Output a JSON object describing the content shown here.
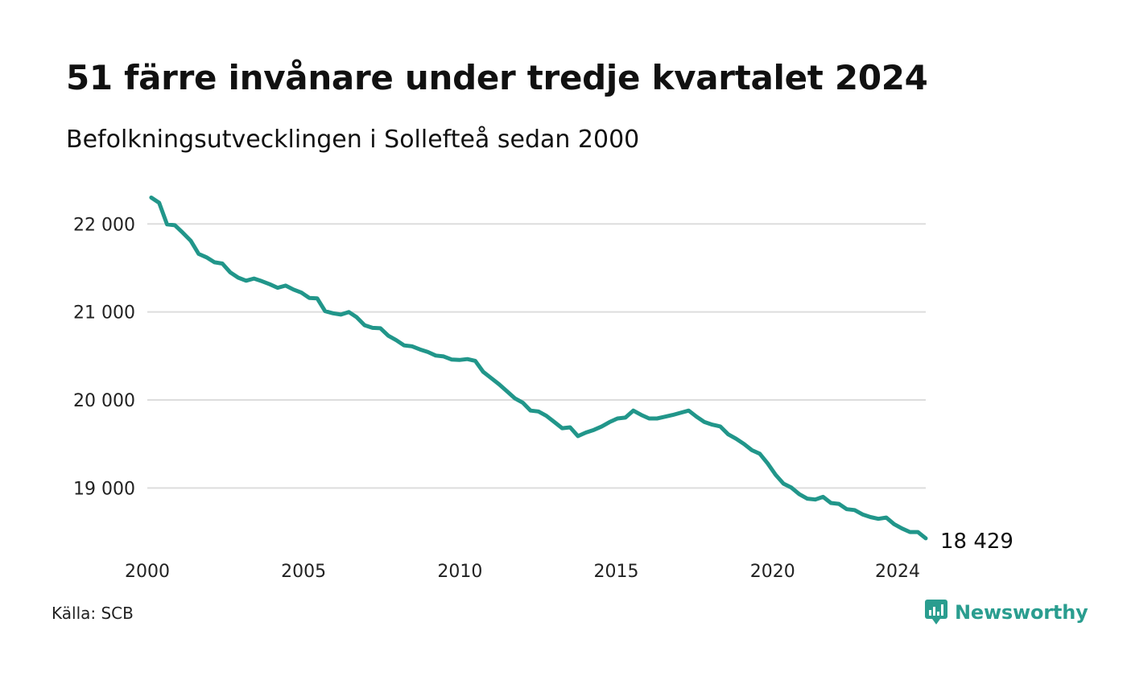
{
  "title": "51 färre invånare under tredje kvartalet 2024",
  "subtitle": "Befolkningsutvecklingen i Sollefteå sedan 2000",
  "source": "Källa: SCB",
  "brand": {
    "name": "Newsworthy",
    "icon": "newsworthy-logo-icon",
    "color": "#2a9d8f"
  },
  "colors": {
    "line": "#21968a",
    "grid": "#dddddd"
  },
  "chart_data": {
    "type": "line",
    "title": "51 färre invånare under tredje kvartalet 2024",
    "subtitle": "Befolkningsutvecklingen i Sollefteå sedan 2000",
    "xlabel": "",
    "ylabel": "",
    "ylim": [
      18300,
      22350
    ],
    "xlim": [
      2000,
      2024.9
    ],
    "grid": true,
    "y_ticks": [
      {
        "value": 19000,
        "label": "19 000"
      },
      {
        "value": 20000,
        "label": "20 000"
      },
      {
        "value": 21000,
        "label": "21 000"
      },
      {
        "value": 22000,
        "label": "22 000"
      }
    ],
    "x_ticks": [
      {
        "value": 2000,
        "label": "2000"
      },
      {
        "value": 2005,
        "label": "2005"
      },
      {
        "value": 2010,
        "label": "2010"
      },
      {
        "value": 2015,
        "label": "2015"
      },
      {
        "value": 2020,
        "label": "2020"
      },
      {
        "value": 2024,
        "label": "2024"
      }
    ],
    "end_label": "18 429",
    "series": [
      {
        "values": [
          22300,
          22240,
          21995,
          21985,
          21900,
          21810,
          21660,
          21620,
          21565,
          21550,
          21450,
          21390,
          21355,
          21380,
          21350,
          21315,
          21275,
          21300,
          21255,
          21220,
          21160,
          21155,
          21010,
          20985,
          20970,
          21000,
          20940,
          20850,
          20820,
          20815,
          20730,
          20680,
          20620,
          20610,
          20575,
          20545,
          20505,
          20495,
          20460,
          20455,
          20465,
          20445,
          20320,
          20250,
          20180,
          20100,
          20020,
          19970,
          19880,
          19870,
          19820,
          19750,
          19680,
          19690,
          19590,
          19630,
          19660,
          19700,
          19750,
          19790,
          19800,
          19880,
          19830,
          19790,
          19790,
          19810,
          19830,
          19855,
          19880,
          19810,
          19750,
          19720,
          19700,
          19610,
          19560,
          19500,
          19430,
          19390,
          19280,
          19150,
          19050,
          19005,
          18930,
          18880,
          18870,
          18900,
          18830,
          18820,
          18760,
          18750,
          18700,
          18670,
          18650,
          18665,
          18590,
          18540,
          18500,
          18500,
          18429
        ]
      }
    ]
  }
}
